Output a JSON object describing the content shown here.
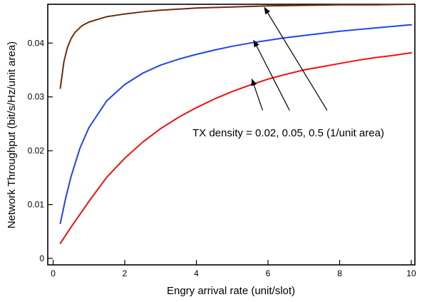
{
  "chart_data": {
    "type": "line",
    "title": "",
    "xlabel": "Engry arrival rate (unit/slot)",
    "ylabel": "Network Throughput (bit/s/Hz/unit area)",
    "xlim": [
      -0.15,
      10.1
    ],
    "ylim": [
      -0.0012,
      0.0472
    ],
    "xticks": [
      0,
      2,
      4,
      6,
      8,
      10
    ],
    "xtick_labels": [
      "0",
      "2",
      "4",
      "6",
      "8",
      "10"
    ],
    "yticks": [
      0,
      0.01,
      0.02,
      0.03,
      0.04
    ],
    "ytick_labels": [
      "0",
      "0.01",
      "0.02",
      "0.03",
      "0.04"
    ],
    "grid": false,
    "legend": "none",
    "series": [
      {
        "color": "#ee1111",
        "x": [
          0.2,
          0.5,
          1,
          1.5,
          2,
          2.5,
          3,
          3.5,
          4,
          4.5,
          5,
          5.5,
          6,
          6.5,
          7,
          7.5,
          8,
          8.5,
          9,
          9.5,
          10
        ],
        "y": [
          0.0028,
          0.0058,
          0.0106,
          0.0151,
          0.0186,
          0.0216,
          0.0241,
          0.0262,
          0.028,
          0.0296,
          0.031,
          0.0322,
          0.0333,
          0.0342,
          0.035,
          0.0356,
          0.0362,
          0.0368,
          0.0373,
          0.0377,
          0.0382
        ]
      },
      {
        "color": "#2244ee",
        "x": [
          0.2,
          0.35,
          0.5,
          0.75,
          1,
          1.5,
          2,
          2.5,
          3,
          3.5,
          4,
          4.5,
          5,
          5.5,
          6,
          6.5,
          7,
          7.5,
          8,
          8.5,
          9,
          9.5,
          10
        ],
        "y": [
          0.0065,
          0.0112,
          0.0152,
          0.0205,
          0.0243,
          0.0293,
          0.0323,
          0.0344,
          0.0359,
          0.037,
          0.0379,
          0.0387,
          0.0394,
          0.04,
          0.0405,
          0.041,
          0.0414,
          0.0418,
          0.0422,
          0.0425,
          0.0428,
          0.0431,
          0.0434
        ]
      },
      {
        "color": "#6b2e0a",
        "x": [
          0.2,
          0.3,
          0.4,
          0.5,
          0.6,
          0.8,
          1,
          1.5,
          2,
          2.5,
          3,
          4,
          5,
          6,
          7,
          8,
          9,
          10
        ],
        "y": [
          0.0316,
          0.0365,
          0.0392,
          0.0408,
          0.0419,
          0.0432,
          0.0439,
          0.0449,
          0.0454,
          0.0458,
          0.0461,
          0.0465,
          0.0467,
          0.0469,
          0.047,
          0.0471,
          0.0471,
          0.0472
        ]
      }
    ],
    "annotation": {
      "text": "TX density = 0.02,  0.05,  0.5 (1/unit area)",
      "arrows": [
        {
          "from": [
            5.85,
            0.0275
          ],
          "to": [
            5.55,
            0.0333
          ]
        },
        {
          "from": [
            6.6,
            0.0275
          ],
          "to": [
            5.6,
            0.0405
          ]
        },
        {
          "from": [
            7.65,
            0.0275
          ],
          "to": [
            5.9,
            0.0466
          ]
        }
      ]
    }
  }
}
